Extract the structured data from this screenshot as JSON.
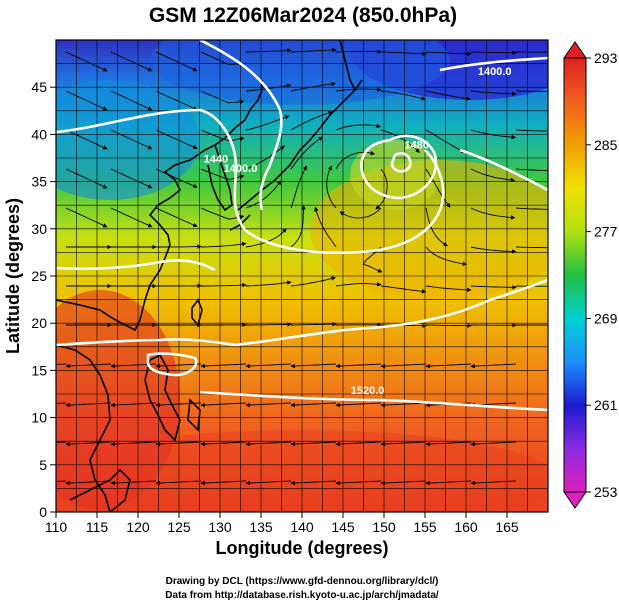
{
  "title": "GSM 12Z06Mar2024 (850.0hPa)",
  "xlabel": "Longitude (degrees)",
  "ylabel": "Latitude (degrees)",
  "credits": [
    "Drawing by DCL (https://www.gfd-dennou.org/library/dcl/)",
    "Data from http://database.rish.kyoto-u.ac.jp/arch/jmadata/"
  ],
  "map": {
    "lon_range": [
      110,
      170
    ],
    "lat_range": [
      0,
      50
    ],
    "lon_ticks": [
      110,
      115,
      120,
      125,
      130,
      135,
      140,
      145,
      150,
      155,
      160,
      165
    ],
    "lat_ticks": [
      0,
      5,
      10,
      15,
      20,
      25,
      30,
      35,
      40,
      45
    ],
    "grid": true,
    "field": "temperature",
    "overlays": [
      "streamlines",
      "geopotential height contours",
      "coastlines"
    ]
  },
  "colorbar": {
    "min": 253,
    "max": 293,
    "ticks": [
      "253",
      "261",
      "269",
      "277",
      "285",
      "293"
    ],
    "colors": [
      "#e020c0",
      "#8a2be2",
      "#1a1ad0",
      "#1e90ff",
      "#00d0d0",
      "#20c040",
      "#b0e010",
      "#f0e000",
      "#f0a000",
      "#f06020",
      "#e02020"
    ]
  },
  "contour_labels": [
    {
      "text": "1400.0",
      "lon": 163.5,
      "lat": 46.3
    },
    {
      "text": "1400.0",
      "lon": 132.5,
      "lat": 36.0
    },
    {
      "text": "1440",
      "lon": 129.5,
      "lat": 37.0
    },
    {
      "text": "1480",
      "lon": 154.0,
      "lat": 38.5
    },
    {
      "text": "1520.0",
      "lon": 148.0,
      "lat": 12.5
    }
  ]
}
